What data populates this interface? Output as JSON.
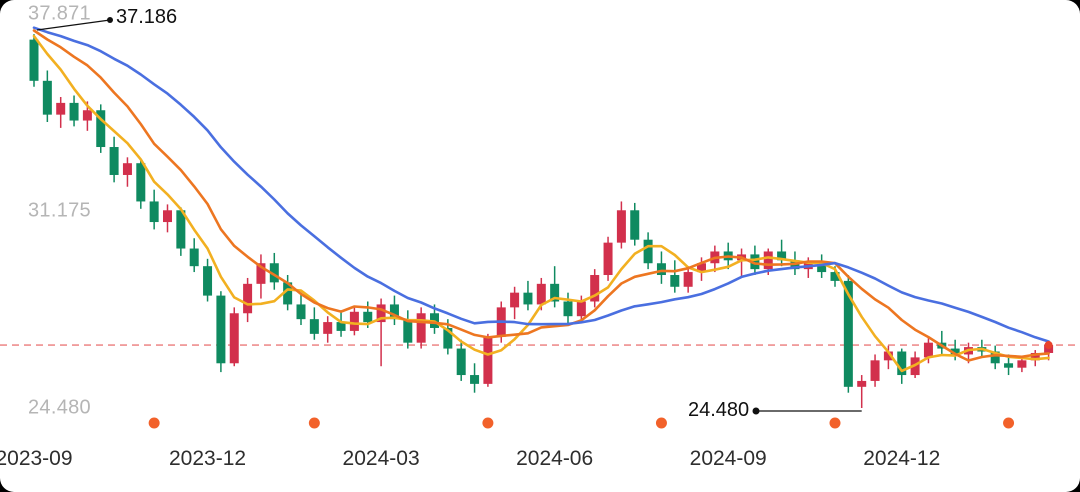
{
  "chart_data": {
    "type": "candlestick",
    "frequency": "weekly",
    "title": "",
    "y_axis": {
      "labels": [
        "37.871",
        "31.175",
        "24.480"
      ],
      "values": [
        37.871,
        31.175,
        24.48
      ]
    },
    "x_axis": {
      "tick_labels": [
        "2023-09",
        "2023-12",
        "2024-03",
        "2024-06",
        "2024-09",
        "2024-12"
      ],
      "tick_indices": [
        0,
        13,
        26,
        39,
        52,
        65
      ]
    },
    "reference_line": {
      "value": 26.62,
      "style": "dashed",
      "color": "#ee8f8f"
    },
    "annotations": {
      "high": {
        "label": "37.186",
        "value": 37.186,
        "index": 0
      },
      "low": {
        "label": "24.480",
        "value": 24.48,
        "index": 62
      }
    },
    "event_markers": {
      "color": "#f2612a",
      "indices": [
        9,
        21,
        34,
        47,
        60,
        73
      ]
    },
    "last_price_dot": {
      "index": 76,
      "color": "#e8432c"
    },
    "colors": {
      "up": "#d2304c",
      "down": "#0f8a60",
      "background": "#ffffff"
    },
    "moving_averages": [
      {
        "name": "MA5",
        "color": "#f2b021",
        "window": 5
      },
      {
        "name": "MA10",
        "color": "#ed7621",
        "window": 10
      },
      {
        "name": "MA20",
        "color": "#4a6fe0",
        "window": 20
      }
    ],
    "candles": {
      "columns": [
        "date",
        "open",
        "high",
        "low",
        "close"
      ],
      "rows": [
        [
          "2023-09-01",
          37.0,
          37.186,
          35.4,
          35.6
        ],
        [
          "2023-09-08",
          35.6,
          35.95,
          34.2,
          34.45
        ],
        [
          "2023-09-15",
          34.45,
          35.05,
          34.0,
          34.85
        ],
        [
          "2023-09-22",
          34.85,
          35.1,
          34.05,
          34.25
        ],
        [
          "2023-09-29",
          34.25,
          34.9,
          33.9,
          34.6
        ],
        [
          "2023-10-06",
          34.6,
          34.8,
          33.15,
          33.35
        ],
        [
          "2023-10-13",
          33.35,
          33.7,
          32.15,
          32.4
        ],
        [
          "2023-10-20",
          32.4,
          33.0,
          32.0,
          32.8
        ],
        [
          "2023-10-27",
          32.8,
          32.95,
          31.25,
          31.5
        ],
        [
          "2023-11-03",
          31.5,
          31.9,
          30.55,
          30.8
        ],
        [
          "2023-11-10",
          30.8,
          31.4,
          30.45,
          31.2
        ],
        [
          "2023-11-17",
          31.2,
          31.3,
          29.65,
          29.9
        ],
        [
          "2023-11-24",
          29.9,
          30.25,
          29.1,
          29.3
        ],
        [
          "2023-12-01",
          29.3,
          29.55,
          28.1,
          28.3
        ],
        [
          "2023-12-08",
          28.3,
          28.45,
          25.7,
          26.0
        ],
        [
          "2023-12-15",
          26.0,
          27.9,
          25.9,
          27.7
        ],
        [
          "2023-12-22",
          27.7,
          28.9,
          27.4,
          28.7
        ],
        [
          "2023-12-29",
          28.7,
          29.7,
          28.2,
          29.4
        ],
        [
          "2024-01-05",
          29.4,
          29.75,
          28.5,
          28.75
        ],
        [
          "2024-01-12",
          28.75,
          29.0,
          27.8,
          28.0
        ],
        [
          "2024-01-19",
          28.0,
          28.4,
          27.3,
          27.5
        ],
        [
          "2024-01-26",
          27.5,
          27.9,
          26.8,
          27.0
        ],
        [
          "2024-02-02",
          27.0,
          27.6,
          26.7,
          27.4
        ],
        [
          "2024-02-09",
          27.4,
          27.8,
          26.9,
          27.1
        ],
        [
          "2024-02-16",
          27.1,
          27.95,
          26.95,
          27.75
        ],
        [
          "2024-02-23",
          27.75,
          28.1,
          27.2,
          27.4
        ],
        [
          "2024-03-01",
          27.4,
          28.2,
          25.9,
          28.0
        ],
        [
          "2024-03-08",
          28.0,
          28.3,
          27.3,
          27.5
        ],
        [
          "2024-03-15",
          27.5,
          27.8,
          26.5,
          26.7
        ],
        [
          "2024-03-22",
          26.7,
          27.9,
          26.5,
          27.7
        ],
        [
          "2024-03-29",
          27.7,
          28.0,
          27.0,
          27.2
        ],
        [
          "2024-04-05",
          27.2,
          27.5,
          26.3,
          26.5
        ],
        [
          "2024-04-12",
          26.5,
          26.8,
          25.4,
          25.6
        ],
        [
          "2024-04-19",
          25.6,
          26.0,
          25.0,
          25.3
        ],
        [
          "2024-04-26",
          25.3,
          27.0,
          25.2,
          26.9
        ],
        [
          "2024-05-03",
          26.9,
          28.1,
          26.7,
          27.9
        ],
        [
          "2024-05-10",
          27.9,
          28.6,
          27.5,
          28.4
        ],
        [
          "2024-05-17",
          28.4,
          28.8,
          27.8,
          28.0
        ],
        [
          "2024-05-24",
          28.0,
          28.9,
          27.8,
          28.7
        ],
        [
          "2024-05-31",
          28.7,
          29.3,
          27.9,
          28.1
        ],
        [
          "2024-06-07",
          28.1,
          28.4,
          27.3,
          27.6
        ],
        [
          "2024-06-14",
          27.6,
          28.3,
          27.4,
          28.1
        ],
        [
          "2024-06-21",
          28.1,
          29.2,
          27.9,
          29.0
        ],
        [
          "2024-06-28",
          29.0,
          30.3,
          28.8,
          30.1
        ],
        [
          "2024-07-05",
          30.1,
          31.5,
          29.9,
          31.2
        ],
        [
          "2024-07-12",
          31.2,
          31.45,
          30.0,
          30.2
        ],
        [
          "2024-07-19",
          30.2,
          30.45,
          29.2,
          29.4
        ],
        [
          "2024-07-26",
          29.4,
          29.8,
          28.7,
          29.0
        ],
        [
          "2024-08-02",
          29.0,
          29.5,
          28.4,
          28.6
        ],
        [
          "2024-08-09",
          28.6,
          29.3,
          28.4,
          29.1
        ],
        [
          "2024-08-16",
          29.1,
          29.6,
          28.8,
          29.4
        ],
        [
          "2024-08-23",
          29.4,
          30.0,
          29.1,
          29.8
        ],
        [
          "2024-08-30",
          29.8,
          30.1,
          29.2,
          29.5
        ],
        [
          "2024-09-06",
          29.5,
          29.9,
          28.9,
          29.7
        ],
        [
          "2024-09-13",
          29.7,
          30.0,
          29.0,
          29.2
        ],
        [
          "2024-09-20",
          29.2,
          29.9,
          29.0,
          29.8
        ],
        [
          "2024-09-27",
          29.8,
          30.2,
          29.3,
          29.5
        ],
        [
          "2024-10-04",
          29.5,
          29.8,
          29.0,
          29.2
        ],
        [
          "2024-10-11",
          29.2,
          29.6,
          28.9,
          29.4
        ],
        [
          "2024-10-18",
          29.4,
          29.7,
          28.9,
          29.1
        ],
        [
          "2024-10-25",
          29.1,
          29.3,
          28.6,
          28.8
        ],
        [
          "2024-11-01",
          28.8,
          29.0,
          25.0,
          25.2
        ],
        [
          "2024-11-08",
          25.2,
          25.6,
          24.48,
          25.4
        ],
        [
          "2024-11-15",
          25.4,
          26.3,
          25.2,
          26.1
        ],
        [
          "2024-11-22",
          26.1,
          26.6,
          25.8,
          26.4
        ],
        [
          "2024-11-29",
          26.4,
          26.5,
          25.3,
          25.6
        ],
        [
          "2024-12-06",
          25.6,
          26.4,
          25.5,
          26.2
        ],
        [
          "2024-12-13",
          26.2,
          26.9,
          26.0,
          26.7
        ],
        [
          "2024-12-20",
          26.7,
          27.1,
          26.3,
          26.5
        ],
        [
          "2024-12-27",
          26.5,
          26.8,
          26.1,
          26.3
        ],
        [
          "2025-01-03",
          26.3,
          26.7,
          26.0,
          26.55
        ],
        [
          "2025-01-10",
          26.55,
          26.8,
          26.2,
          26.4
        ],
        [
          "2025-01-17",
          26.4,
          26.6,
          25.8,
          26.0
        ],
        [
          "2025-01-24",
          26.0,
          26.3,
          25.6,
          25.85
        ],
        [
          "2025-01-31",
          25.85,
          26.2,
          25.7,
          26.1
        ],
        [
          "2025-02-07",
          26.1,
          26.45,
          25.9,
          26.35
        ],
        [
          "2025-02-14",
          26.35,
          26.7,
          26.1,
          26.62
        ]
      ]
    }
  }
}
